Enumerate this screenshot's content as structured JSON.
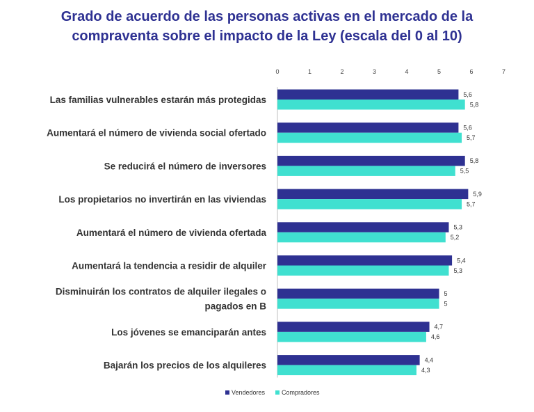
{
  "chart_data": {
    "type": "bar",
    "orientation": "horizontal",
    "title": "Grado de acuerdo de las personas activas en el mercado de la compraventa sobre el impacto de la Ley (escala del 0 al 10)",
    "title_lines": [
      "Grado de acuerdo de las personas activas en el mercado de la",
      "compraventa sobre el impacto de la Ley (escala del 0 al 10)"
    ],
    "categories": [
      [
        "Las familias vulnerables estarán más protegidas"
      ],
      [
        "Aumentará el número de vivienda social ofertado"
      ],
      [
        "Se reducirá el número de inversores"
      ],
      [
        "Los propietarios no invertirán en las viviendas"
      ],
      [
        "Aumentará el número de vivienda ofertada"
      ],
      [
        "Aumentará la tendencia a residir de alquiler"
      ],
      [
        "Disminuirán los contratos de alquiler ilegales o",
        "pagados en B"
      ],
      [
        "Los jóvenes se emanciparán antes"
      ],
      [
        "Bajarán los precios de los alquileres"
      ]
    ],
    "series": [
      {
        "name": "Vendedores",
        "color": "#2e3192",
        "values": [
          5.6,
          5.6,
          5.8,
          5.9,
          5.3,
          5.4,
          5,
          4.7,
          4.4
        ],
        "labels": [
          "5,6",
          "5,6",
          "5,8",
          "5,9",
          "5,3",
          "5,4",
          "5",
          "4,7",
          "4,4"
        ]
      },
      {
        "name": "Compradores",
        "color": "#40e0d0",
        "values": [
          5.8,
          5.7,
          5.5,
          5.7,
          5.2,
          5.3,
          5,
          4.6,
          4.3
        ],
        "labels": [
          "5,8",
          "5,7",
          "5,5",
          "5,7",
          "5,2",
          "5,3",
          "5",
          "4,6",
          "4,3"
        ]
      }
    ],
    "xlim": [
      0,
      7
    ],
    "xticks": [
      "0",
      "1",
      "2",
      "3",
      "4",
      "5",
      "6",
      "7"
    ],
    "axis_position": "top",
    "grid": false,
    "legend_position": "bottom"
  }
}
